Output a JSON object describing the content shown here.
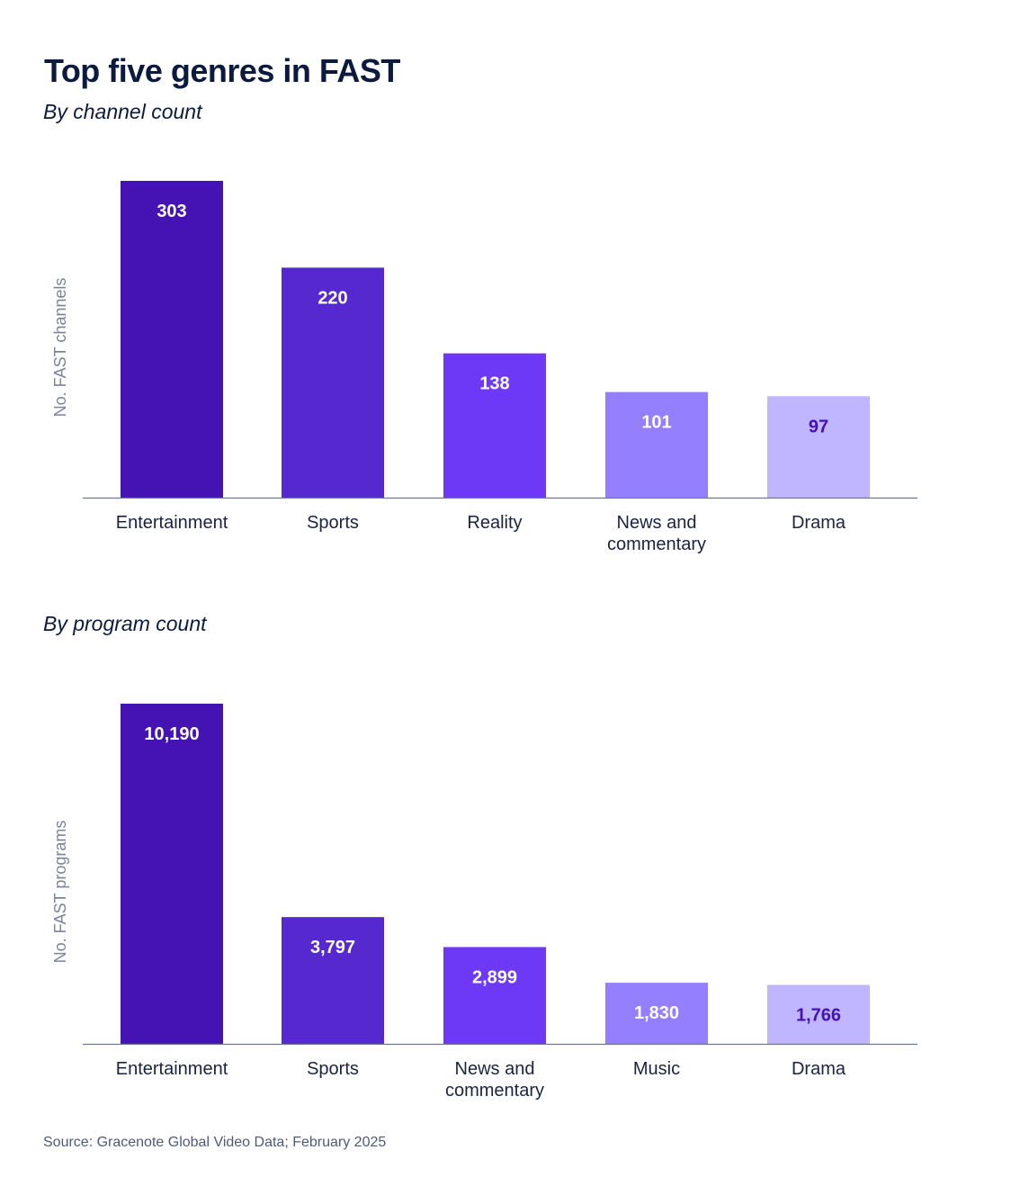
{
  "title": "Top five genres in FAST",
  "source": "Source: Gracenote Global Video Data; February 2025",
  "colors": [
    "#4512b4",
    "#5629d0",
    "#6e38f7",
    "#9480ff",
    "#c0b5ff"
  ],
  "label_colors": [
    "#ffffff",
    "#ffffff",
    "#ffffff",
    "#ffffff",
    "#4512b4"
  ],
  "chart_data": [
    {
      "type": "bar",
      "title": "By channel count",
      "ylabel": "No. FAST channels",
      "xlabel": "",
      "categories": [
        "Entertainment",
        "Sports",
        "Reality",
        "News and commentary",
        "Drama"
      ],
      "category_lines": [
        [
          "Entertainment"
        ],
        [
          "Sports"
        ],
        [
          "Reality"
        ],
        [
          "News and",
          "commentary"
        ],
        [
          "Drama"
        ]
      ],
      "values": [
        303,
        220,
        138,
        101,
        97
      ],
      "value_labels": [
        "303",
        "220",
        "138",
        "101",
        "97"
      ],
      "ylim": [
        0,
        303
      ],
      "grid": false,
      "legend": "none"
    },
    {
      "type": "bar",
      "title": "By program count",
      "ylabel": "No. FAST programs",
      "xlabel": "",
      "categories": [
        "Entertainment",
        "Sports",
        "News and commentary",
        "Music",
        "Drama"
      ],
      "category_lines": [
        [
          "Entertainment"
        ],
        [
          "Sports"
        ],
        [
          "News and",
          "commentary"
        ],
        [
          "Music"
        ],
        [
          "Drama"
        ]
      ],
      "values": [
        10190,
        3797,
        2899,
        1830,
        1766
      ],
      "value_labels": [
        "10,190",
        "3,797",
        "2,899",
        "1,830",
        "1,766"
      ],
      "ylim": [
        0,
        10190
      ],
      "grid": false,
      "legend": "none"
    }
  ]
}
